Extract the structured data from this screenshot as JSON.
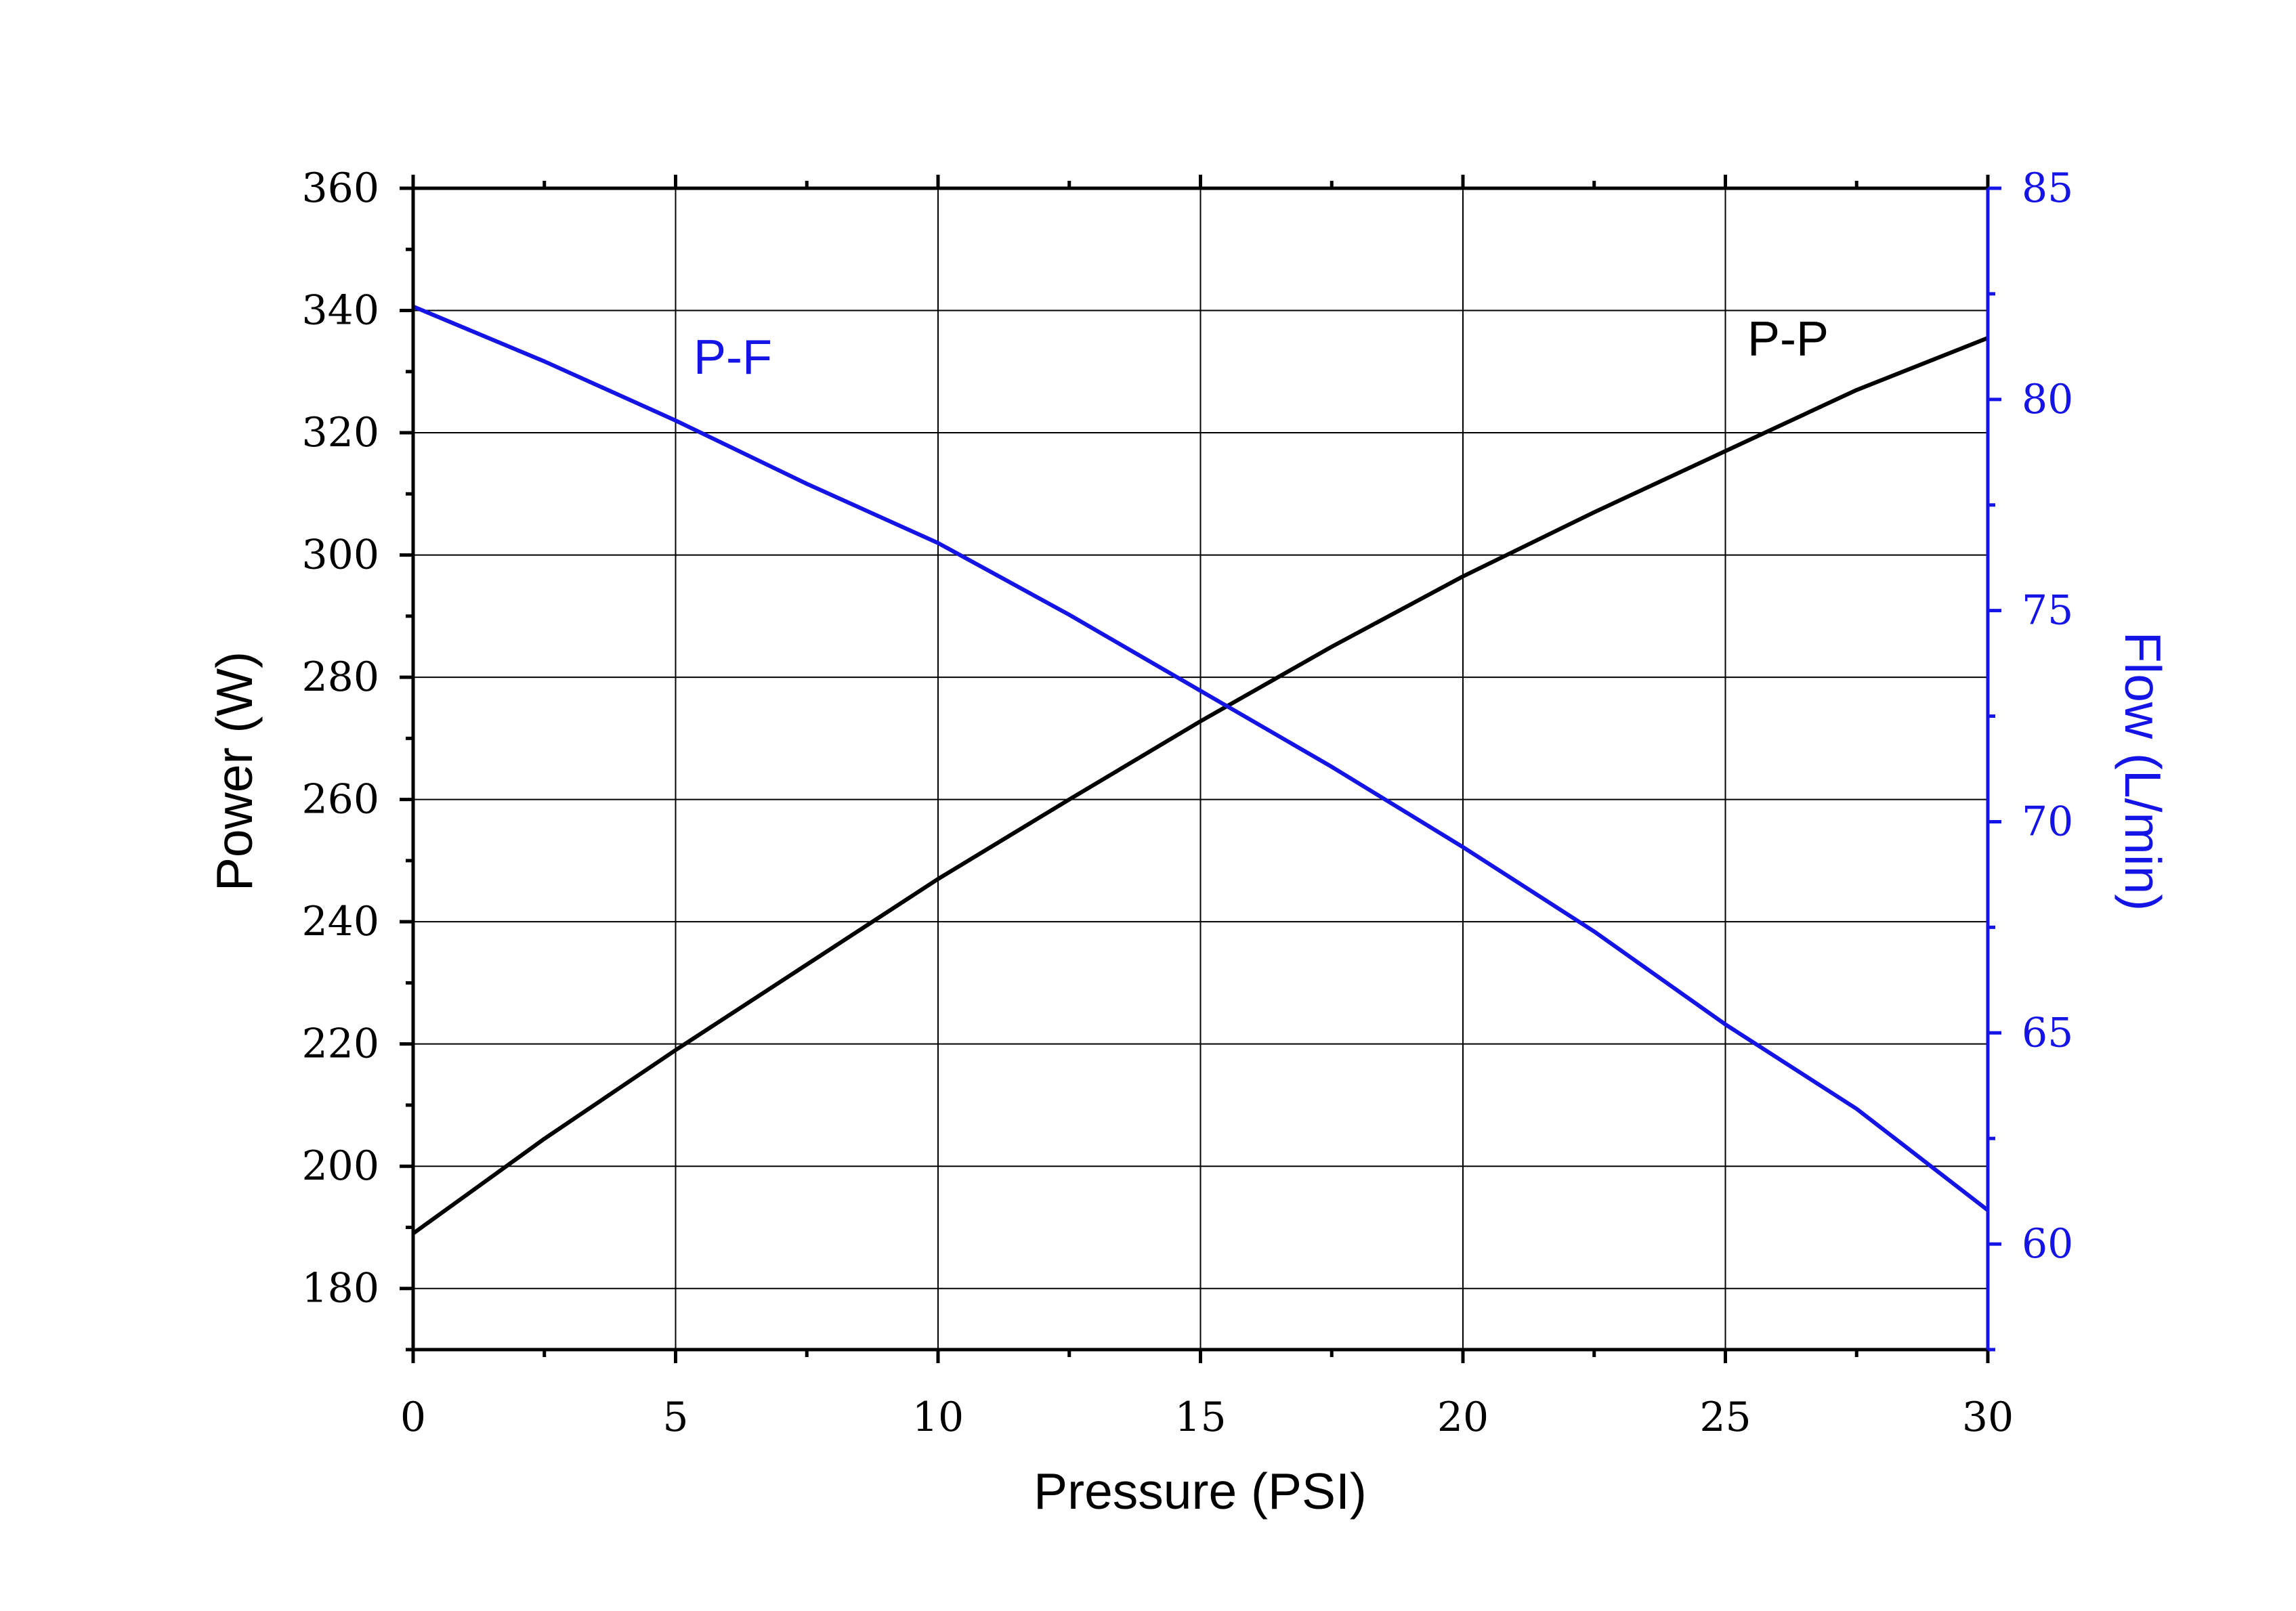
{
  "chart_data": {
    "type": "line",
    "xlabel": "Pressure (PSI)",
    "ylabel_left": "Power (W)",
    "ylabel_right": "Flow (L/min)",
    "xlim": [
      0,
      30
    ],
    "ylim_left": [
      170,
      360
    ],
    "ylim_right": [
      57.5,
      85
    ],
    "x_ticks": [
      0,
      5,
      10,
      15,
      20,
      25,
      30
    ],
    "y_left_ticks": [
      180,
      200,
      220,
      240,
      260,
      280,
      300,
      320,
      340,
      360
    ],
    "y_right_ticks": [
      60,
      65,
      70,
      75,
      80,
      85
    ],
    "grid": true,
    "colors": {
      "left_axis": "#000000",
      "right_axis": "#1414e6"
    },
    "series": [
      {
        "name": "P-P",
        "axis": "left",
        "color": "#000000",
        "x": [
          0,
          2.5,
          5,
          7.5,
          10,
          12.5,
          15,
          17.5,
          20,
          22.5,
          25,
          27.5,
          30
        ],
        "y": [
          189,
          204.5,
          219,
          233,
          247,
          260,
          272.8,
          285,
          296.5,
          307,
          317,
          327,
          335.5
        ]
      },
      {
        "name": "P-F",
        "axis": "right",
        "color": "#1414e6",
        "x": [
          0,
          2.5,
          5,
          7.5,
          10,
          12.5,
          15,
          17.5,
          20,
          22.5,
          25,
          27.5,
          30
        ],
        "y": [
          82.2,
          80.9,
          79.5,
          78,
          76.6,
          74.9,
          73.1,
          71.3,
          69.4,
          67.4,
          65.2,
          63.2,
          60.8
        ]
      }
    ]
  }
}
